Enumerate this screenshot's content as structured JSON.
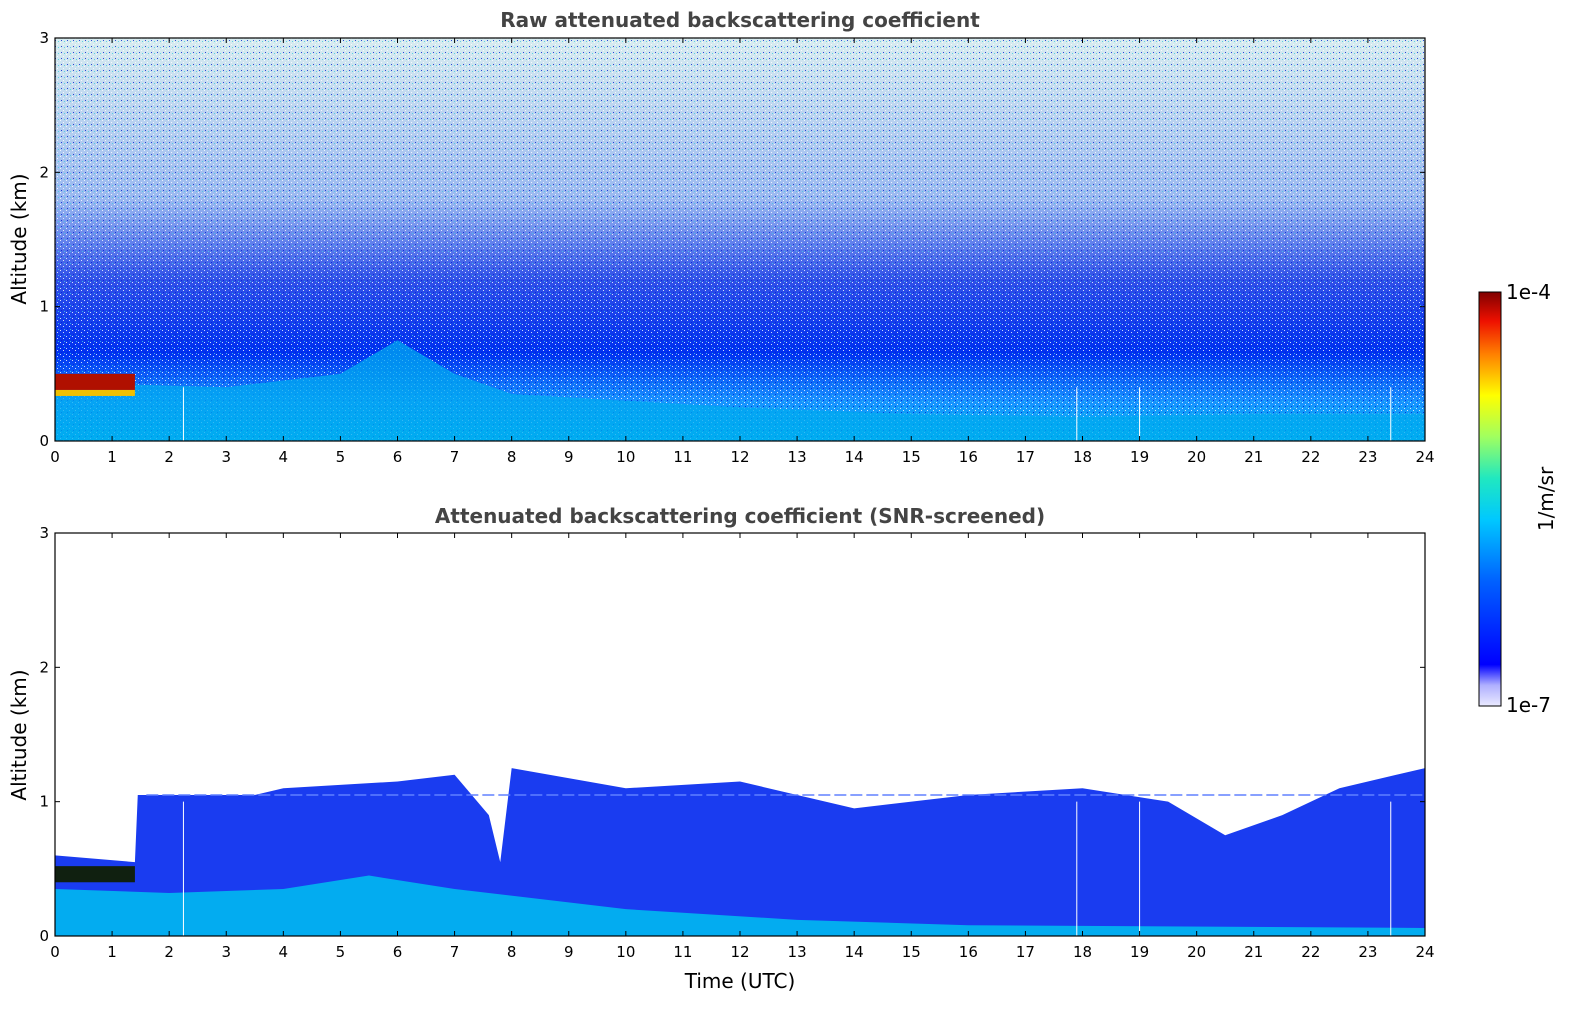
{
  "chart_data": [
    {
      "type": "heatmap",
      "title": "Raw attenuated backscattering coefficient",
      "xlabel": "",
      "ylabel": "Altitude (km)",
      "xlim": [
        0,
        24
      ],
      "ylim": [
        0,
        3
      ],
      "xticks": [
        "0",
        "1",
        "2",
        "3",
        "4",
        "5",
        "6",
        "7",
        "8",
        "9",
        "10",
        "11",
        "12",
        "13",
        "14",
        "15",
        "16",
        "17",
        "18",
        "19",
        "20",
        "21",
        "22",
        "23",
        "24"
      ],
      "yticks": [
        "0",
        "1",
        "2",
        "3"
      ],
      "layers": [
        {
          "name": "",
          "x": [
            0,
            1.4
          ],
          "y_top": 0.5,
          "level": "high"
        }
      ],
      "boundary_layer_top_km": [
        {
          "x": 0,
          "y": 0.45
        },
        {
          "x": 1.4,
          "y": 0.42
        },
        {
          "x": 3,
          "y": 0.4
        },
        {
          "x": 5,
          "y": 0.5
        },
        {
          "x": 6,
          "y": 0.75
        },
        {
          "x": 7,
          "y": 0.5
        },
        {
          "x": 8,
          "y": 0.35
        },
        {
          "x": 10,
          "y": 0.3
        },
        {
          "x": 12,
          "y": 0.25
        },
        {
          "x": 15,
          "y": 0.2
        },
        {
          "x": 18,
          "y": 0.18
        },
        {
          "x": 21,
          "y": 0.2
        },
        {
          "x": 24,
          "y": 0.2
        }
      ]
    },
    {
      "type": "heatmap",
      "title": "Attenuated backscattering coefficient (SNR-screened)",
      "xlabel": "Time (UTC)",
      "ylabel": "Altitude (km)",
      "xlim": [
        0,
        24
      ],
      "ylim": [
        0,
        3
      ],
      "xticks": [
        "0",
        "1",
        "2",
        "3",
        "4",
        "5",
        "6",
        "7",
        "8",
        "9",
        "10",
        "11",
        "12",
        "13",
        "14",
        "15",
        "16",
        "17",
        "18",
        "19",
        "20",
        "21",
        "22",
        "23",
        "24"
      ],
      "yticks": [
        "0",
        "1",
        "2",
        "3"
      ],
      "signal_top_km": [
        {
          "x": 0,
          "y": 0.6
        },
        {
          "x": 1.4,
          "y": 0.55
        },
        {
          "x": 1.45,
          "y": 1.05
        },
        {
          "x": 3.5,
          "y": 1.05
        },
        {
          "x": 4,
          "y": 1.1
        },
        {
          "x": 6,
          "y": 1.15
        },
        {
          "x": 7,
          "y": 1.2
        },
        {
          "x": 7.6,
          "y": 0.9
        },
        {
          "x": 7.8,
          "y": 0.55
        },
        {
          "x": 8,
          "y": 1.25
        },
        {
          "x": 10,
          "y": 1.1
        },
        {
          "x": 12,
          "y": 1.15
        },
        {
          "x": 14,
          "y": 0.95
        },
        {
          "x": 16,
          "y": 1.05
        },
        {
          "x": 18,
          "y": 1.1
        },
        {
          "x": 19.5,
          "y": 1.0
        },
        {
          "x": 20.5,
          "y": 0.75
        },
        {
          "x": 21.5,
          "y": 0.9
        },
        {
          "x": 22.5,
          "y": 1.1
        },
        {
          "x": 24,
          "y": 1.25
        }
      ]
    }
  ],
  "colorbar": {
    "label": "1/m/sr",
    "max_label": "1e-4",
    "min_label": "1e-7",
    "scale": "log",
    "colormap": "jet"
  }
}
